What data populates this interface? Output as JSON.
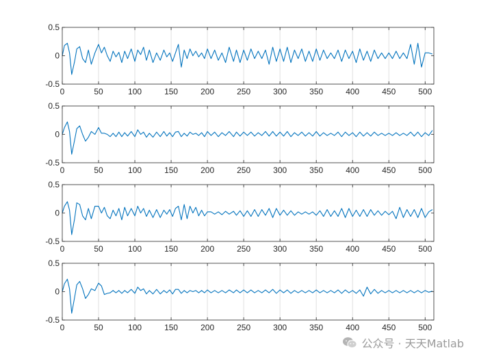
{
  "chart_data": [
    {
      "type": "line",
      "xlim": [
        0,
        512
      ],
      "ylim": [
        -0.5,
        0.5
      ],
      "xticks": [
        0,
        50,
        100,
        150,
        200,
        250,
        300,
        350,
        400,
        450,
        500
      ],
      "yticks": [
        -0.5,
        0,
        0.5
      ],
      "xtick_labels": [
        "0",
        "50",
        "100",
        "150",
        "200",
        "250",
        "300",
        "350",
        "400",
        "450",
        "500"
      ],
      "ytick_labels": [
        "-0.5",
        "0",
        "0.5"
      ],
      "grid": "x",
      "line_color": "#0072bd",
      "series": [
        {
          "x": [
            0,
            3,
            7,
            10,
            13,
            17,
            20,
            24,
            28,
            32,
            36,
            40,
            45,
            50,
            54,
            58,
            62,
            66,
            70,
            74,
            78,
            82,
            86,
            90,
            95,
            100,
            104,
            108,
            112,
            116,
            120,
            125,
            130,
            135,
            140,
            144,
            148,
            152,
            156,
            160,
            164,
            168,
            172,
            176,
            180,
            184,
            188,
            192,
            196,
            200,
            205,
            210,
            215,
            220,
            225,
            230,
            236,
            240,
            245,
            250,
            255,
            260,
            265,
            270,
            275,
            280,
            285,
            290,
            295,
            300,
            305,
            310,
            315,
            320,
            325,
            330,
            335,
            340,
            345,
            350,
            355,
            360,
            365,
            370,
            375,
            380,
            385,
            390,
            395,
            400,
            405,
            410,
            415,
            420,
            425,
            430,
            435,
            440,
            445,
            450,
            455,
            460,
            465,
            470,
            475,
            480,
            485,
            490,
            495,
            500,
            505,
            510
          ],
          "y": [
            0,
            0.18,
            0.22,
            0.05,
            -0.33,
            -0.1,
            0.12,
            0.16,
            -0.05,
            -0.12,
            0.1,
            -0.15,
            0.05,
            0.2,
            0.05,
            0.15,
            0.0,
            -0.1,
            0.08,
            -0.02,
            0.06,
            -0.12,
            0.08,
            -0.05,
            0.12,
            -0.1,
            0.1,
            0.02,
            0.15,
            -0.08,
            0.1,
            -0.12,
            0.05,
            -0.08,
            0.1,
            -0.02,
            0.05,
            -0.1,
            0.05,
            0.2,
            -0.2,
            0.1,
            -0.05,
            0.12,
            0.0,
            0.08,
            -0.02,
            0.05,
            -0.05,
            0.12,
            -0.05,
            0.1,
            -0.08,
            0.05,
            -0.12,
            0.15,
            -0.1,
            0.1,
            -0.12,
            0.1,
            -0.08,
            0.12,
            -0.05,
            0.08,
            -0.05,
            0.1,
            -0.15,
            0.15,
            -0.1,
            0.12,
            -0.1,
            0.15,
            -0.12,
            0.1,
            -0.05,
            0.12,
            -0.1,
            0.08,
            -0.1,
            0.12,
            -0.08,
            0.1,
            -0.05,
            0.05,
            -0.05,
            0.1,
            -0.1,
            0.1,
            -0.05,
            0.08,
            -0.12,
            0.12,
            -0.08,
            0.08,
            -0.1,
            0.1,
            -0.05,
            0.05,
            -0.05,
            0.05,
            -0.05,
            0.08,
            -0.05,
            0.05,
            -0.05,
            0.2,
            -0.15,
            0.22,
            -0.2,
            0.05,
            0.05,
            0.03
          ]
        }
      ]
    },
    {
      "type": "line",
      "xlim": [
        0,
        512
      ],
      "ylim": [
        -0.5,
        0.5
      ],
      "xticks": [
        0,
        50,
        100,
        150,
        200,
        250,
        300,
        350,
        400,
        450,
        500
      ],
      "yticks": [
        -0.5,
        0,
        0.5
      ],
      "xtick_labels": [
        "0",
        "50",
        "100",
        "150",
        "200",
        "250",
        "300",
        "350",
        "400",
        "450",
        "500"
      ],
      "ytick_labels": [
        "-0.5",
        "0",
        "0.5"
      ],
      "grid": "x",
      "line_color": "#0072bd",
      "series": [
        {
          "x": [
            0,
            3,
            7,
            10,
            13,
            17,
            20,
            24,
            28,
            32,
            36,
            40,
            45,
            50,
            54,
            58,
            62,
            66,
            70,
            74,
            78,
            82,
            86,
            90,
            95,
            100,
            104,
            108,
            112,
            116,
            120,
            125,
            130,
            135,
            140,
            144,
            148,
            152,
            156,
            160,
            164,
            168,
            172,
            176,
            180,
            184,
            188,
            192,
            196,
            200,
            205,
            210,
            215,
            220,
            225,
            230,
            236,
            240,
            245,
            250,
            255,
            260,
            265,
            270,
            275,
            280,
            285,
            290,
            295,
            300,
            305,
            310,
            315,
            320,
            325,
            330,
            335,
            340,
            345,
            350,
            355,
            360,
            365,
            370,
            375,
            380,
            385,
            390,
            395,
            400,
            405,
            410,
            415,
            420,
            425,
            430,
            435,
            440,
            445,
            450,
            455,
            460,
            465,
            470,
            475,
            480,
            485,
            490,
            495,
            500,
            505,
            510
          ],
          "y": [
            0,
            0.12,
            0.22,
            0.05,
            -0.35,
            -0.1,
            0.1,
            0.15,
            0.0,
            -0.12,
            -0.05,
            0.05,
            0.0,
            0.12,
            0.02,
            0.02,
            0.0,
            -0.04,
            0.02,
            -0.04,
            0.04,
            -0.04,
            0.03,
            -0.03,
            0.05,
            -0.04,
            0.08,
            0.0,
            0.04,
            -0.05,
            0.02,
            -0.05,
            0.04,
            -0.04,
            0.05,
            -0.03,
            0.03,
            -0.04,
            0.04,
            0.05,
            -0.04,
            0.02,
            -0.03,
            0.04,
            0.0,
            0.02,
            -0.02,
            0.03,
            -0.04,
            0.05,
            -0.02,
            0.04,
            -0.04,
            0.03,
            -0.02,
            0.05,
            -0.04,
            0.04,
            -0.03,
            0.04,
            -0.02,
            0.04,
            -0.03,
            0.03,
            -0.02,
            0.05,
            -0.03,
            0.05,
            -0.03,
            0.04,
            -0.03,
            0.05,
            -0.04,
            0.03,
            -0.02,
            0.04,
            -0.03,
            0.03,
            -0.03,
            0.05,
            -0.03,
            0.03,
            -0.02,
            0.02,
            -0.02,
            0.04,
            -0.04,
            0.04,
            -0.02,
            0.03,
            -0.04,
            0.04,
            -0.03,
            0.03,
            -0.03,
            0.04,
            -0.02,
            0.02,
            -0.02,
            0.02,
            -0.02,
            0.03,
            -0.02,
            0.02,
            -0.02,
            0.04,
            -0.03,
            0.04,
            -0.04,
            0.03,
            -0.02,
            0.07
          ]
        }
      ]
    },
    {
      "type": "line",
      "xlim": [
        0,
        512
      ],
      "ylim": [
        -0.5,
        0.5
      ],
      "xticks": [
        0,
        50,
        100,
        150,
        200,
        250,
        300,
        350,
        400,
        450,
        500
      ],
      "yticks": [
        -0.5,
        0,
        0.5
      ],
      "xtick_labels": [
        "0",
        "50",
        "100",
        "150",
        "200",
        "250",
        "300",
        "350",
        "400",
        "450",
        "500"
      ],
      "ytick_labels": [
        "-0.5",
        "0",
        "0.5"
      ],
      "grid": "x",
      "line_color": "#0072bd",
      "series": [
        {
          "x": [
            0,
            3,
            7,
            10,
            13,
            17,
            20,
            24,
            28,
            32,
            36,
            40,
            45,
            50,
            54,
            58,
            62,
            66,
            70,
            74,
            78,
            82,
            86,
            90,
            95,
            100,
            104,
            108,
            112,
            116,
            120,
            125,
            130,
            135,
            140,
            144,
            148,
            152,
            156,
            160,
            164,
            168,
            172,
            176,
            180,
            184,
            188,
            192,
            196,
            200,
            205,
            210,
            215,
            220,
            225,
            230,
            236,
            240,
            245,
            250,
            255,
            260,
            265,
            270,
            275,
            280,
            285,
            290,
            295,
            300,
            305,
            310,
            315,
            320,
            325,
            330,
            335,
            340,
            345,
            350,
            355,
            360,
            365,
            370,
            375,
            380,
            385,
            390,
            395,
            400,
            405,
            410,
            415,
            420,
            425,
            430,
            435,
            440,
            445,
            450,
            455,
            460,
            465,
            470,
            475,
            480,
            485,
            490,
            495,
            500,
            505,
            510
          ],
          "y": [
            0,
            0.12,
            0.2,
            0.05,
            -0.38,
            -0.1,
            0.18,
            0.15,
            -0.05,
            -0.12,
            0.08,
            -0.1,
            0.12,
            0.12,
            0.0,
            0.1,
            -0.05,
            -0.1,
            0.05,
            -0.05,
            0.08,
            -0.12,
            0.1,
            -0.05,
            0.08,
            -0.05,
            0.12,
            0.0,
            0.08,
            -0.06,
            0.05,
            -0.08,
            0.06,
            -0.08,
            0.05,
            -0.02,
            0.06,
            -0.06,
            0.08,
            0.12,
            -0.12,
            0.15,
            -0.1,
            0.12,
            0.0,
            0.1,
            -0.05,
            0.05,
            -0.05,
            0.02,
            0.02,
            -0.02,
            0.02,
            -0.03,
            0.03,
            -0.02,
            0.03,
            -0.04,
            0.04,
            -0.06,
            0.04,
            -0.06,
            0.06,
            -0.06,
            0.06,
            -0.04,
            0.08,
            -0.08,
            0.08,
            -0.04,
            0.05,
            -0.04,
            0.04,
            -0.04,
            0.02,
            -0.02,
            0.02,
            -0.02,
            0.02,
            -0.04,
            0.04,
            -0.06,
            0.06,
            -0.06,
            0.04,
            -0.06,
            0.08,
            -0.08,
            0.08,
            -0.06,
            0.05,
            -0.06,
            0.06,
            -0.06,
            0.06,
            -0.04,
            0.04,
            -0.04,
            0.03,
            -0.03,
            0.03,
            -0.1,
            0.1,
            -0.08,
            0.06,
            -0.06,
            0.06,
            -0.08,
            0.08,
            -0.08,
            0.02,
            0.06
          ]
        }
      ]
    },
    {
      "type": "line",
      "xlim": [
        0,
        512
      ],
      "ylim": [
        -0.5,
        0.5
      ],
      "xticks": [
        0,
        50,
        100,
        150,
        200,
        250,
        300,
        350,
        400,
        450,
        500
      ],
      "yticks": [
        -0.5,
        0,
        0.5
      ],
      "xtick_labels": [
        "0",
        "50",
        "100",
        "150",
        "200",
        "250",
        "300",
        "350",
        "400",
        "450",
        "500"
      ],
      "ytick_labels": [
        "-0.5",
        "0",
        "0.5"
      ],
      "grid": "x",
      "line_color": "#0072bd",
      "series": [
        {
          "x": [
            0,
            3,
            7,
            10,
            13,
            17,
            20,
            24,
            28,
            32,
            36,
            40,
            45,
            50,
            54,
            58,
            62,
            66,
            70,
            74,
            78,
            82,
            86,
            90,
            95,
            100,
            104,
            108,
            112,
            116,
            120,
            125,
            130,
            135,
            140,
            144,
            148,
            152,
            156,
            160,
            164,
            168,
            172,
            176,
            180,
            184,
            188,
            192,
            196,
            200,
            205,
            210,
            215,
            220,
            225,
            230,
            236,
            240,
            245,
            250,
            255,
            260,
            265,
            270,
            275,
            280,
            285,
            290,
            295,
            300,
            305,
            310,
            315,
            320,
            325,
            330,
            335,
            340,
            345,
            350,
            355,
            360,
            365,
            370,
            375,
            380,
            385,
            390,
            395,
            400,
            405,
            410,
            415,
            420,
            425,
            430,
            435,
            440,
            445,
            450,
            455,
            460,
            465,
            470,
            475,
            480,
            485,
            490,
            495,
            500,
            505,
            510
          ],
          "y": [
            0,
            0.14,
            0.22,
            0.05,
            -0.38,
            -0.1,
            0.12,
            0.18,
            0.05,
            -0.12,
            -0.05,
            0.05,
            0.02,
            0.15,
            0.1,
            -0.05,
            -0.03,
            -0.02,
            0.02,
            -0.02,
            0.02,
            -0.03,
            0.02,
            -0.02,
            0.04,
            -0.03,
            0.08,
            0.02,
            0.05,
            -0.04,
            0.02,
            -0.04,
            0.04,
            -0.04,
            0.02,
            -0.02,
            0.03,
            -0.04,
            0.04,
            0.04,
            -0.03,
            0.02,
            -0.02,
            0.02,
            0.0,
            0.02,
            -0.02,
            0.02,
            -0.02,
            0.03,
            -0.02,
            0.02,
            -0.02,
            0.02,
            -0.02,
            0.03,
            -0.02,
            0.03,
            -0.02,
            0.03,
            -0.02,
            0.03,
            -0.02,
            0.02,
            -0.02,
            0.03,
            -0.02,
            0.04,
            -0.03,
            0.03,
            -0.02,
            0.03,
            -0.03,
            0.02,
            -0.02,
            0.02,
            -0.02,
            0.02,
            -0.02,
            0.03,
            -0.02,
            0.02,
            -0.02,
            0.02,
            -0.02,
            0.03,
            -0.03,
            0.03,
            -0.02,
            0.02,
            -0.03,
            0.03,
            -0.08,
            0.08,
            -0.04,
            0.04,
            -0.03,
            0.02,
            -0.02,
            0.02,
            -0.02,
            0.02,
            -0.02,
            0.02,
            -0.02,
            0.02,
            -0.02,
            0.02,
            -0.02,
            0.02,
            -0.01,
            0.01
          ]
        }
      ]
    }
  ],
  "watermark": {
    "icon": "wechat-icon",
    "text": "公众号 · 天天Matlab"
  }
}
